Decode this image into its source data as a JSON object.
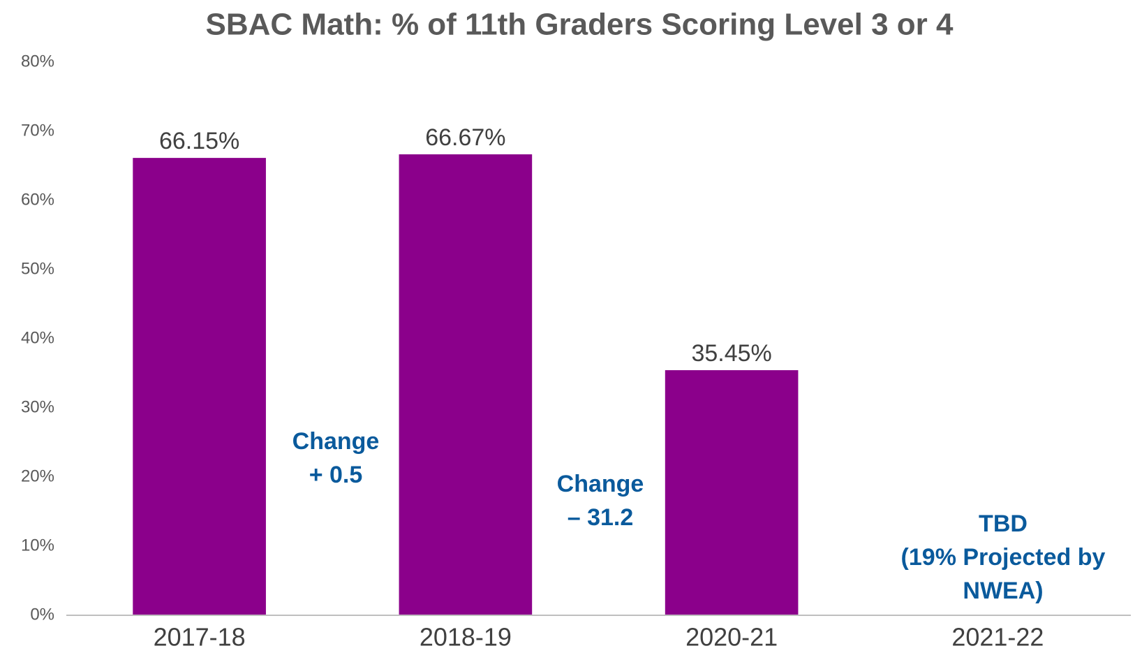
{
  "chart_data": {
    "type": "bar",
    "title": "SBAC Math: % of 11th Graders Scoring Level 3 or 4",
    "categories": [
      "2017-18",
      "2018-19",
      "2020-21",
      "2021-22"
    ],
    "values": [
      66.15,
      66.67,
      35.45,
      null
    ],
    "value_labels": [
      "66.15%",
      "66.67%",
      "35.45%",
      null
    ],
    "color": "#8b008b",
    "ylim": [
      0,
      80
    ],
    "yticks": [
      {
        "value": 0,
        "label": "0%"
      },
      {
        "value": 10,
        "label": "10%"
      },
      {
        "value": 20,
        "label": "20%"
      },
      {
        "value": 30,
        "label": "30%"
      },
      {
        "value": 40,
        "label": "40%"
      },
      {
        "value": 50,
        "label": "50%"
      },
      {
        "value": 60,
        "label": "60%"
      },
      {
        "value": 70,
        "label": "70%"
      },
      {
        "value": 80,
        "label": "80%"
      }
    ],
    "grid": false,
    "annotations": [
      {
        "lines": [
          "Change",
          "+ 0.5"
        ]
      },
      {
        "lines": [
          "Change",
          "– 31.2"
        ]
      },
      {
        "lines": [
          "TBD",
          "(19% Projected by",
          "NWEA)"
        ]
      }
    ]
  }
}
